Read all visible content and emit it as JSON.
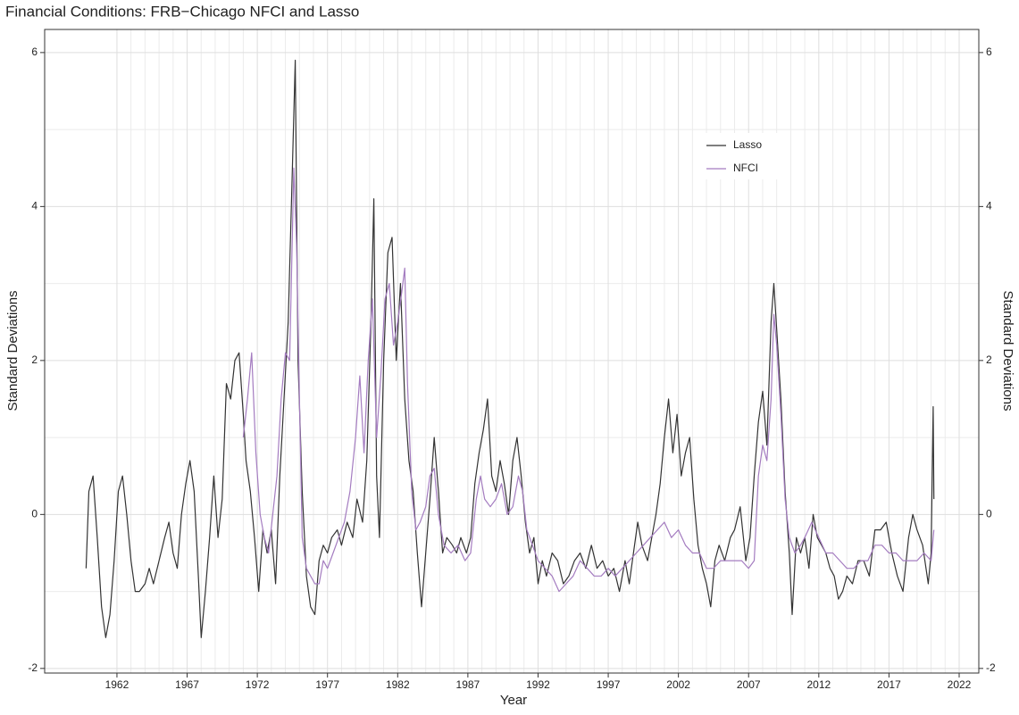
{
  "chart_data": {
    "type": "line",
    "title": "Financial Conditions: FRB−Chicago NFCI and Lasso",
    "xlabel": "Year",
    "ylabel": "Standard Deviations",
    "y2label": "Standard Deviations",
    "xlim": [
      1956.85,
      2023.4
    ],
    "xticks": [
      1962,
      1967,
      1972,
      1977,
      1982,
      1987,
      1992,
      1997,
      2002,
      2007,
      2012,
      2017,
      2022
    ],
    "ylim": [
      -2.06,
      6.3
    ],
    "yticks": [
      -2,
      0,
      2,
      4,
      6
    ],
    "y2lim": [
      -2.06,
      6.3
    ],
    "y2ticks": [
      -2,
      0,
      2,
      4,
      6
    ],
    "grid": true,
    "legend": "top-right",
    "series": [
      {
        "name": "Lasso",
        "color": "#333333",
        "x": [
          1959.8,
          1960.0,
          1960.3,
          1960.6,
          1960.9,
          1961.2,
          1961.5,
          1961.8,
          1962.1,
          1962.4,
          1962.7,
          1963.0,
          1963.3,
          1963.6,
          1964.0,
          1964.3,
          1964.6,
          1965.0,
          1965.4,
          1965.7,
          1966.0,
          1966.3,
          1966.6,
          1966.9,
          1967.2,
          1967.5,
          1967.8,
          1968.0,
          1968.3,
          1968.6,
          1968.9,
          1969.2,
          1969.5,
          1969.8,
          1970.1,
          1970.4,
          1970.7,
          1971.0,
          1971.2,
          1971.5,
          1971.8,
          1972.1,
          1972.4,
          1972.7,
          1973.0,
          1973.3,
          1973.6,
          1973.9,
          1974.2,
          1974.5,
          1974.7,
          1974.9,
          1975.2,
          1975.5,
          1975.8,
          1976.1,
          1976.4,
          1976.7,
          1977.0,
          1977.3,
          1977.7,
          1978.0,
          1978.4,
          1978.8,
          1979.1,
          1979.5,
          1979.8,
          1980.1,
          1980.3,
          1980.5,
          1980.7,
          1981.0,
          1981.3,
          1981.6,
          1981.9,
          1982.2,
          1982.5,
          1982.8,
          1983.1,
          1983.4,
          1983.7,
          1984.0,
          1984.3,
          1984.6,
          1984.9,
          1985.2,
          1985.5,
          1985.9,
          1986.2,
          1986.5,
          1986.9,
          1987.2,
          1987.5,
          1987.8,
          1988.1,
          1988.4,
          1988.7,
          1989.0,
          1989.3,
          1989.6,
          1989.9,
          1990.2,
          1990.5,
          1990.8,
          1991.1,
          1991.4,
          1991.7,
          1992.0,
          1992.3,
          1992.6,
          1993.0,
          1993.4,
          1993.8,
          1994.2,
          1994.6,
          1995.0,
          1995.4,
          1995.8,
          1996.2,
          1996.6,
          1997.0,
          1997.4,
          1997.8,
          1998.2,
          1998.5,
          1998.8,
          1999.1,
          1999.4,
          1999.8,
          2000.1,
          2000.4,
          2000.7,
          2001.0,
          2001.3,
          2001.6,
          2001.9,
          2002.2,
          2002.5,
          2002.8,
          2003.1,
          2003.4,
          2003.7,
          2004.0,
          2004.3,
          2004.6,
          2004.9,
          2005.3,
          2005.7,
          2006.0,
          2006.4,
          2006.8,
          2007.1,
          2007.4,
          2007.7,
          2008.0,
          2008.3,
          2008.6,
          2008.8,
          2009.0,
          2009.3,
          2009.6,
          2009.9,
          2010.1,
          2010.4,
          2010.7,
          2011.0,
          2011.3,
          2011.6,
          2011.9,
          2012.2,
          2012.5,
          2012.8,
          2013.1,
          2013.4,
          2013.7,
          2014.0,
          2014.4,
          2014.8,
          2015.2,
          2015.6,
          2016.0,
          2016.4,
          2016.8,
          2017.2,
          2017.6,
          2018.0,
          2018.4,
          2018.7,
          2019.0,
          2019.4,
          2019.8,
          2020.0,
          2020.15,
          2020.2
        ],
        "values": [
          -0.7,
          0.3,
          0.5,
          -0.3,
          -1.2,
          -1.6,
          -1.3,
          -0.6,
          0.3,
          0.5,
          0.0,
          -0.6,
          -1.0,
          -1.0,
          -0.9,
          -0.7,
          -0.9,
          -0.6,
          -0.3,
          -0.1,
          -0.5,
          -0.7,
          0.0,
          0.4,
          0.7,
          0.3,
          -0.8,
          -1.6,
          -1.0,
          -0.3,
          0.5,
          -0.3,
          0.2,
          1.7,
          1.5,
          2.0,
          2.1,
          1.3,
          0.7,
          0.3,
          -0.3,
          -1.0,
          -0.2,
          -0.5,
          -0.2,
          -0.9,
          0.5,
          1.5,
          2.5,
          4.5,
          5.9,
          2.0,
          0.3,
          -0.8,
          -1.2,
          -1.3,
          -0.6,
          -0.4,
          -0.5,
          -0.3,
          -0.2,
          -0.4,
          -0.1,
          -0.3,
          0.2,
          -0.1,
          0.7,
          2.5,
          4.1,
          0.5,
          -0.3,
          2.0,
          3.4,
          3.6,
          2.0,
          3.0,
          1.5,
          0.7,
          0.3,
          -0.5,
          -1.2,
          -0.5,
          0.2,
          1.0,
          0.3,
          -0.5,
          -0.3,
          -0.4,
          -0.5,
          -0.3,
          -0.5,
          -0.3,
          0.4,
          0.8,
          1.1,
          1.5,
          0.5,
          0.3,
          0.7,
          0.4,
          0.0,
          0.7,
          1.0,
          0.5,
          -0.1,
          -0.5,
          -0.3,
          -0.9,
          -0.6,
          -0.8,
          -0.5,
          -0.6,
          -0.9,
          -0.8,
          -0.6,
          -0.5,
          -0.7,
          -0.4,
          -0.7,
          -0.6,
          -0.8,
          -0.7,
          -1.0,
          -0.6,
          -0.9,
          -0.5,
          -0.1,
          -0.4,
          -0.6,
          -0.3,
          0.0,
          0.4,
          1.0,
          1.5,
          0.8,
          1.3,
          0.5,
          0.8,
          1.0,
          0.2,
          -0.4,
          -0.7,
          -0.9,
          -1.2,
          -0.6,
          -0.4,
          -0.6,
          -0.3,
          -0.2,
          0.1,
          -0.6,
          -0.3,
          0.5,
          1.2,
          1.6,
          0.9,
          2.5,
          3.0,
          2.4,
          1.5,
          0.3,
          -0.5,
          -1.3,
          -0.3,
          -0.5,
          -0.3,
          -0.7,
          0.0,
          -0.3,
          -0.4,
          -0.5,
          -0.7,
          -0.8,
          -1.1,
          -1.0,
          -0.8,
          -0.9,
          -0.6,
          -0.6,
          -0.8,
          -0.2,
          -0.2,
          -0.1,
          -0.5,
          -0.8,
          -1.0,
          -0.3,
          0.0,
          -0.2,
          -0.4,
          -0.9,
          -0.5,
          1.4,
          0.2
        ]
      },
      {
        "name": "NFCI",
        "color": "#a47cc0",
        "x": [
          1971.0,
          1971.3,
          1971.6,
          1971.9,
          1972.2,
          1972.5,
          1972.8,
          1973.1,
          1973.4,
          1973.7,
          1974.0,
          1974.3,
          1974.6,
          1974.8,
          1975.0,
          1975.2,
          1975.5,
          1975.8,
          1976.1,
          1976.4,
          1976.7,
          1977.0,
          1977.4,
          1977.8,
          1978.2,
          1978.6,
          1979.0,
          1979.3,
          1979.6,
          1979.9,
          1980.2,
          1980.5,
          1980.8,
          1981.1,
          1981.4,
          1981.7,
          1982.0,
          1982.3,
          1982.5,
          1982.7,
          1983.0,
          1983.3,
          1983.6,
          1984.0,
          1984.3,
          1984.6,
          1984.9,
          1985.3,
          1985.8,
          1986.3,
          1986.8,
          1987.2,
          1987.6,
          1987.9,
          1988.2,
          1988.6,
          1989.0,
          1989.4,
          1989.8,
          1990.2,
          1990.6,
          1990.9,
          1991.2,
          1991.6,
          1992.0,
          1992.5,
          1993.0,
          1993.5,
          1994.0,
          1994.5,
          1995.0,
          1995.5,
          1996.0,
          1996.5,
          1997.0,
          1997.5,
          1998.0,
          1998.5,
          1999.0,
          1999.5,
          2000.0,
          2000.5,
          2001.0,
          2001.5,
          2002.0,
          2002.5,
          2003.0,
          2003.5,
          2004.0,
          2004.5,
          2005.0,
          2005.5,
          2006.0,
          2006.5,
          2007.0,
          2007.4,
          2007.7,
          2008.0,
          2008.3,
          2008.6,
          2008.8,
          2009.0,
          2009.3,
          2009.6,
          2009.9,
          2010.3,
          2010.7,
          2011.0,
          2011.5,
          2012.0,
          2012.5,
          2013.0,
          2013.5,
          2014.0,
          2014.5,
          2015.0,
          2015.5,
          2016.0,
          2016.5,
          2017.0,
          2017.5,
          2018.0,
          2018.5,
          2019.0,
          2019.5,
          2020.0,
          2020.2
        ],
        "values": [
          1.0,
          1.5,
          2.1,
          0.8,
          0.0,
          -0.3,
          -0.5,
          0.0,
          0.5,
          1.5,
          2.1,
          2.0,
          4.5,
          3.5,
          1.5,
          -0.3,
          -0.7,
          -0.8,
          -0.9,
          -0.9,
          -0.6,
          -0.7,
          -0.5,
          -0.3,
          -0.1,
          0.3,
          1.0,
          1.8,
          0.8,
          2.0,
          2.8,
          1.0,
          1.8,
          2.8,
          3.0,
          2.2,
          2.5,
          2.9,
          3.2,
          1.7,
          0.3,
          -0.2,
          -0.1,
          0.1,
          0.5,
          0.6,
          0.0,
          -0.4,
          -0.5,
          -0.4,
          -0.6,
          -0.5,
          0.2,
          0.5,
          0.2,
          0.1,
          0.2,
          0.4,
          0.0,
          0.1,
          0.5,
          0.3,
          -0.2,
          -0.4,
          -0.6,
          -0.7,
          -0.8,
          -1.0,
          -0.9,
          -0.8,
          -0.6,
          -0.7,
          -0.8,
          -0.8,
          -0.7,
          -0.8,
          -0.7,
          -0.6,
          -0.5,
          -0.4,
          -0.3,
          -0.2,
          -0.1,
          -0.3,
          -0.2,
          -0.4,
          -0.5,
          -0.5,
          -0.7,
          -0.7,
          -0.6,
          -0.6,
          -0.6,
          -0.6,
          -0.7,
          -0.6,
          0.5,
          0.9,
          0.7,
          1.5,
          2.6,
          2.2,
          1.3,
          0.2,
          -0.3,
          -0.5,
          -0.4,
          -0.3,
          -0.1,
          -0.3,
          -0.5,
          -0.5,
          -0.6,
          -0.7,
          -0.7,
          -0.6,
          -0.6,
          -0.4,
          -0.4,
          -0.5,
          -0.5,
          -0.6,
          -0.6,
          -0.6,
          -0.5,
          -0.6,
          -0.2
        ]
      }
    ]
  }
}
